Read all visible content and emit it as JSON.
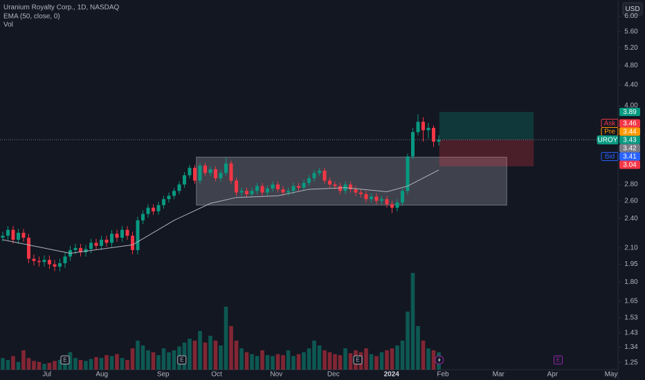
{
  "chart_data": {
    "type": "candlestick",
    "title": "Uranium Royalty Corp., 1D, NASDAQ",
    "indicator_label": "EMA (50, close, 0)",
    "volume_label": "Vol",
    "currency_button": "USD",
    "log_scale": true,
    "up_color": "#089981",
    "down_color": "#f23645",
    "xlim": [
      -0.53,
      118.13
    ],
    "xticks": [
      {
        "value": 8.5,
        "label": "Jul"
      },
      {
        "value": 19.1,
        "label": "Aug"
      },
      {
        "value": 30.9,
        "label": "Sep"
      },
      {
        "value": 41.2,
        "label": "Oct"
      },
      {
        "value": 52.7,
        "label": "Nov"
      },
      {
        "value": 63.7,
        "label": "Dec"
      },
      {
        "value": 74.9,
        "label": "2024",
        "bold": true
      },
      {
        "value": 84.8,
        "label": "Feb"
      },
      {
        "value": 95.5,
        "label": "Mar"
      },
      {
        "value": 105.9,
        "label": "Apr"
      },
      {
        "value": 117.2,
        "label": "May"
      }
    ],
    "ylim": [
      1.21,
      6.46
    ],
    "yticks": [
      {
        "value": 1.25,
        "label": "1.25"
      },
      1.34,
      1.43,
      1.53,
      1.65,
      {
        "value": 1.8,
        "label": "1.80"
      },
      1.95,
      {
        "value": 2.1,
        "label": "2.10"
      },
      {
        "value": 2.4,
        "label": "2.40"
      },
      {
        "value": 2.6,
        "label": "2.60"
      },
      {
        "value": 2.8,
        "label": "2.80"
      },
      {
        "value": 4,
        "label": "4.00"
      },
      {
        "value": 4.4,
        "label": "4.40"
      },
      {
        "value": 4.8,
        "label": "4.80"
      },
      {
        "value": 5.2,
        "label": "5.20"
      },
      {
        "value": 5.6,
        "label": "5.60"
      },
      {
        "value": 6,
        "label": "6.00"
      }
    ],
    "open": [
      2.2,
      2.22,
      2.28,
      2.18,
      2.25,
      2.2,
      2.0,
      1.98,
      1.97,
      1.99,
      1.95,
      1.93,
      1.96,
      2.02,
      2.08,
      2.1,
      2.06,
      2.09,
      2.15,
      2.12,
      2.18,
      2.15,
      2.24,
      2.2,
      2.28,
      2.22,
      2.08,
      2.38,
      2.45,
      2.52,
      2.48,
      2.55,
      2.62,
      2.66,
      2.72,
      2.8,
      2.92,
      3.02,
      2.85,
      3.05,
      2.95,
      3.0,
      2.88,
      2.95,
      3.08,
      2.85,
      2.7,
      2.72,
      2.68,
      2.72,
      2.78,
      2.7,
      2.75,
      2.8,
      2.74,
      2.7,
      2.72,
      2.78,
      2.76,
      2.82,
      2.88,
      2.95,
      2.98,
      2.85,
      2.8,
      2.78,
      2.72,
      2.8,
      2.74,
      2.7,
      2.68,
      2.62,
      2.65,
      2.6,
      2.62,
      2.56,
      2.52,
      2.58,
      2.72,
      3.18,
      3.55,
      3.72,
      3.58,
      3.62,
      3.4
    ],
    "high": [
      2.26,
      2.32,
      2.32,
      2.29,
      2.29,
      2.24,
      2.04,
      2.02,
      2.03,
      2.03,
      1.99,
      2.0,
      2.06,
      2.12,
      2.14,
      2.14,
      2.13,
      2.19,
      2.19,
      2.22,
      2.22,
      2.28,
      2.28,
      2.32,
      2.32,
      2.26,
      2.42,
      2.49,
      2.56,
      2.56,
      2.59,
      2.66,
      2.7,
      2.76,
      2.84,
      2.96,
      3.06,
      3.06,
      3.09,
      3.09,
      3.04,
      3.04,
      2.99,
      3.16,
      3.12,
      2.89,
      2.76,
      2.76,
      2.76,
      2.82,
      2.82,
      2.79,
      2.84,
      2.84,
      2.78,
      2.76,
      2.82,
      2.82,
      2.86,
      2.92,
      2.99,
      3.02,
      3.02,
      2.89,
      2.84,
      2.82,
      2.84,
      2.84,
      2.78,
      2.74,
      2.72,
      2.69,
      2.69,
      2.66,
      2.66,
      2.6,
      2.62,
      2.76,
      3.22,
      3.62,
      3.85,
      3.8,
      3.7,
      3.66,
      3.5
    ],
    "low": [
      2.16,
      2.18,
      2.14,
      2.14,
      2.16,
      1.96,
      1.94,
      1.93,
      1.93,
      1.91,
      1.89,
      1.89,
      1.92,
      1.98,
      2.04,
      2.02,
      2.02,
      2.05,
      2.08,
      2.08,
      2.11,
      2.11,
      2.16,
      2.16,
      2.18,
      2.04,
      2.04,
      2.34,
      2.41,
      2.44,
      2.44,
      2.51,
      2.58,
      2.62,
      2.68,
      2.76,
      2.88,
      2.81,
      2.81,
      2.91,
      2.91,
      2.84,
      2.84,
      2.91,
      2.81,
      2.66,
      2.66,
      2.64,
      2.64,
      2.68,
      2.66,
      2.66,
      2.71,
      2.7,
      2.66,
      2.66,
      2.68,
      2.72,
      2.72,
      2.78,
      2.84,
      2.91,
      2.81,
      2.76,
      2.74,
      2.68,
      2.68,
      2.7,
      2.66,
      2.64,
      2.58,
      2.58,
      2.56,
      2.56,
      2.52,
      2.46,
      2.48,
      2.54,
      2.68,
      3.14,
      3.5,
      3.4,
      3.45,
      3.32,
      3.34
    ],
    "close": [
      2.22,
      2.28,
      2.18,
      2.25,
      2.2,
      2.0,
      1.98,
      1.97,
      1.99,
      1.95,
      1.93,
      1.96,
      2.02,
      2.08,
      2.1,
      2.06,
      2.09,
      2.15,
      2.12,
      2.18,
      2.15,
      2.24,
      2.2,
      2.28,
      2.22,
      2.08,
      2.38,
      2.45,
      2.52,
      2.48,
      2.55,
      2.62,
      2.66,
      2.72,
      2.8,
      2.92,
      3.02,
      2.85,
      3.05,
      2.95,
      3.0,
      2.88,
      2.95,
      3.08,
      2.85,
      2.7,
      2.72,
      2.68,
      2.72,
      2.78,
      2.7,
      2.75,
      2.8,
      2.74,
      2.7,
      2.72,
      2.78,
      2.76,
      2.82,
      2.88,
      2.95,
      2.98,
      2.85,
      2.8,
      2.78,
      2.72,
      2.8,
      2.74,
      2.7,
      2.68,
      2.62,
      2.65,
      2.6,
      2.62,
      2.56,
      2.52,
      2.58,
      2.72,
      3.18,
      3.55,
      3.72,
      3.58,
      3.62,
      3.4,
      3.43
    ],
    "volume": [
      12,
      10,
      14,
      8,
      20,
      12,
      9,
      8,
      6,
      7,
      9,
      10,
      14,
      18,
      12,
      10,
      9,
      11,
      13,
      12,
      15,
      14,
      16,
      12,
      10,
      22,
      30,
      25,
      20,
      18,
      15,
      22,
      18,
      20,
      24,
      28,
      32,
      30,
      40,
      28,
      35,
      30,
      25,
      65,
      45,
      30,
      22,
      18,
      16,
      14,
      20,
      15,
      14,
      16,
      15,
      20,
      14,
      16,
      18,
      22,
      30,
      25,
      20,
      18,
      16,
      15,
      22,
      17,
      20,
      18,
      22,
      16,
      14,
      18,
      20,
      22,
      25,
      30,
      60,
      100,
      45,
      30,
      22,
      20,
      18
    ],
    "vlim": [
      0,
      100
    ],
    "ema": {
      "color": "#b2b5be",
      "x": [
        0,
        13,
        25,
        33,
        40,
        45,
        53,
        59,
        66,
        74,
        78,
        84
      ],
      "values": [
        2.18,
        2.05,
        2.13,
        2.38,
        2.57,
        2.64,
        2.66,
        2.74,
        2.76,
        2.71,
        2.78,
        2.99
      ]
    },
    "rectangle": {
      "x": [
        37.3,
        97.1
      ],
      "top": 3.17,
      "bottom": 2.55
    },
    "position": {
      "x": [
        84.1,
        102.3
      ],
      "entry": 3.43,
      "target": 3.89,
      "stop": 3.04
    },
    "events": {
      "x": [
        12.0,
        34.5,
        68.4,
        107.0
      ],
      "labels": [
        "E",
        "E",
        "E",
        "E"
      ],
      "colors": [
        "#b2b5be",
        "#b2b5be",
        "#b2b5be",
        "#9c27b0"
      ]
    },
    "price_tags": [
      {
        "value": 3.89,
        "color": "#089981"
      },
      {
        "name": "Ask",
        "value": 3.46,
        "color": "#f23645"
      },
      {
        "name": "Pre",
        "value": 3.44,
        "color": "#ff9800"
      },
      {
        "name": "UROY",
        "value": 3.43,
        "color": "#089981"
      },
      {
        "value": 3.42,
        "color": "#787b86"
      },
      {
        "name": "Bid",
        "value": 3.41,
        "color": "#2962ff"
      },
      {
        "value": 3.04,
        "color": "#f23645"
      }
    ]
  }
}
